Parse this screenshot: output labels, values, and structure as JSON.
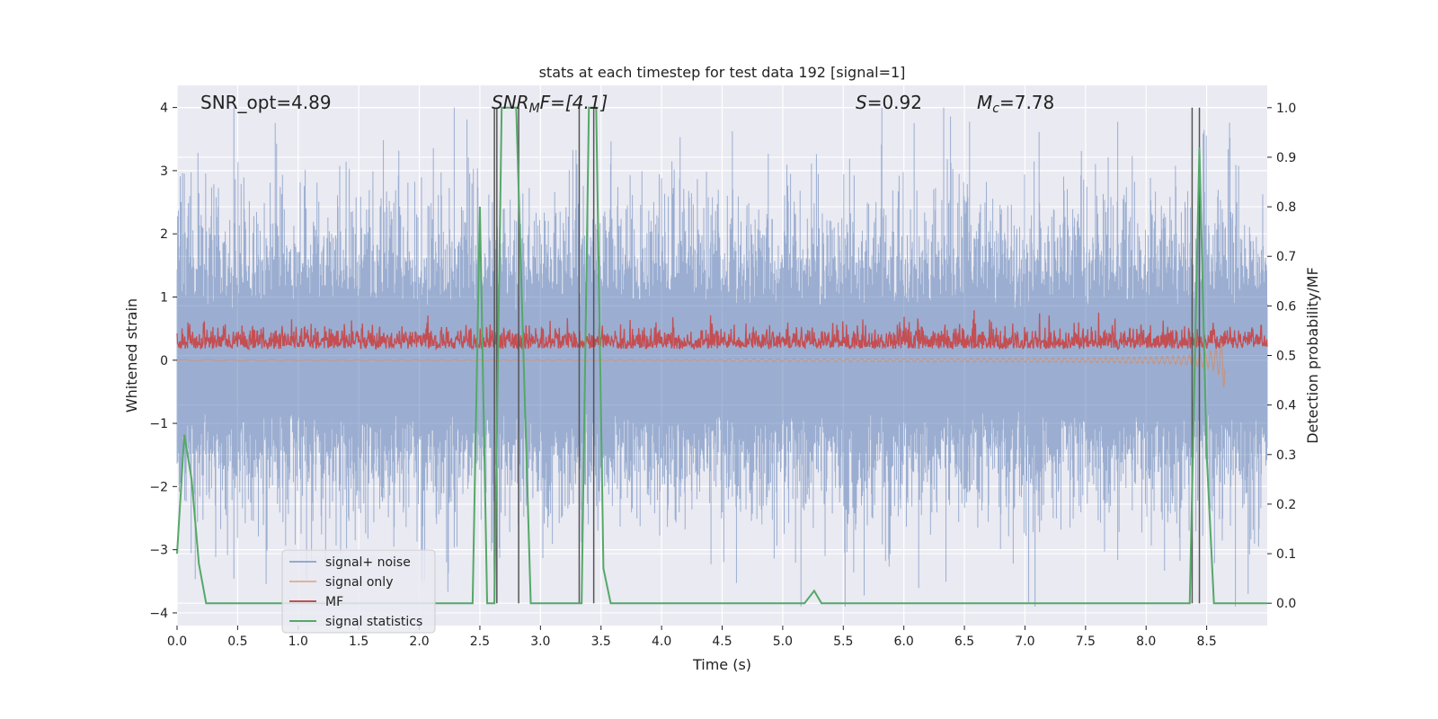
{
  "chart_data": {
    "type": "line",
    "title": "stats at each timestep for test data 192 [signal=1]",
    "xlabel": "Time (s)",
    "ylabel": "Whitened strain",
    "y2label": "Detection probability/MF",
    "xlim": [
      0.0,
      9.0
    ],
    "ylim": [
      -4.2,
      4.35
    ],
    "y2lim": [
      -0.045,
      1.045
    ],
    "xticks": [
      "0.0",
      "0.5",
      "1.0",
      "1.5",
      "2.0",
      "2.5",
      "3.0",
      "3.5",
      "4.0",
      "4.5",
      "5.0",
      "5.5",
      "6.0",
      "6.5",
      "7.0",
      "7.5",
      "8.0",
      "8.5"
    ],
    "xtick_values": [
      0.0,
      0.5,
      1.0,
      1.5,
      2.0,
      2.5,
      3.0,
      3.5,
      4.0,
      4.5,
      5.0,
      5.5,
      6.0,
      6.5,
      7.0,
      7.5,
      8.0,
      8.5
    ],
    "yticks": [
      "−4",
      "−3",
      "−2",
      "−1",
      "0",
      "1",
      "2",
      "3",
      "4"
    ],
    "ytick_values": [
      -4,
      -3,
      -2,
      -1,
      0,
      1,
      2,
      3,
      4
    ],
    "y2ticks": [
      "0.0",
      "0.1",
      "0.2",
      "0.3",
      "0.4",
      "0.5",
      "0.6",
      "0.7",
      "0.8",
      "0.9",
      "1.0"
    ],
    "y2tick_values": [
      0.0,
      0.1,
      0.2,
      0.3,
      0.4,
      0.5,
      0.6,
      0.7,
      0.8,
      0.9,
      1.0
    ],
    "grid": true,
    "legend": {
      "placement": "lower-left",
      "entries": [
        {
          "name": "signal+ noise",
          "color": "#4c72b0"
        },
        {
          "name": "signal only",
          "color": "#dd8452"
        },
        {
          "name": "MF",
          "color": "#c44e52"
        },
        {
          "name": "signal statistics",
          "color": "#55a868"
        }
      ]
    },
    "annotations": {
      "snr_opt": "SNR_opt=4.89",
      "snr_mf_name": "SNR",
      "snr_mf_sub": "M",
      "snr_mf_rest": "F=[4.1]",
      "s_name": "S",
      "s_value": "=0.92",
      "mc_name": "M",
      "mc_sub": "c",
      "mc_value": "=7.78"
    },
    "series_style": {
      "noise_color": "#4c72b0",
      "signal_color": "#dd8452",
      "mf_color": "#c44e52",
      "stat_color": "#55a868",
      "vline_color": "#555555",
      "background": "#eaeaf2",
      "grid_color": "#ffffff"
    },
    "signal_statistics": {
      "x": [
        0.0,
        0.06,
        0.12,
        0.18,
        0.24,
        0.3,
        2.44,
        2.5,
        2.56,
        2.62,
        2.68,
        2.74,
        2.8,
        2.86,
        2.92,
        2.98,
        3.34,
        3.4,
        3.46,
        3.52,
        3.58,
        5.18,
        5.26,
        5.32,
        5.38,
        8.3,
        8.36,
        8.44,
        8.5,
        8.56,
        9.0
      ],
      "y": [
        0.1,
        0.34,
        0.25,
        0.08,
        0.0,
        0.0,
        0.0,
        0.8,
        0.0,
        0.0,
        1.0,
        1.0,
        1.0,
        0.5,
        0.0,
        0.0,
        0.0,
        1.0,
        1.0,
        0.07,
        0.0,
        0.0,
        0.025,
        0.0,
        0.0,
        0.0,
        0.0,
        0.92,
        0.3,
        0.0,
        0.0
      ]
    },
    "mf_vertical_lines": [
      2.62,
      2.64,
      2.82,
      3.32,
      3.44,
      8.38,
      8.44
    ],
    "signal_only_chirp": {
      "t_start": 4.5,
      "t_merger": 8.65,
      "peak_amplitude": 0.45
    },
    "time_series_note_values": {
      "noise_samples": 2400,
      "mf_samples": 2400
    }
  }
}
